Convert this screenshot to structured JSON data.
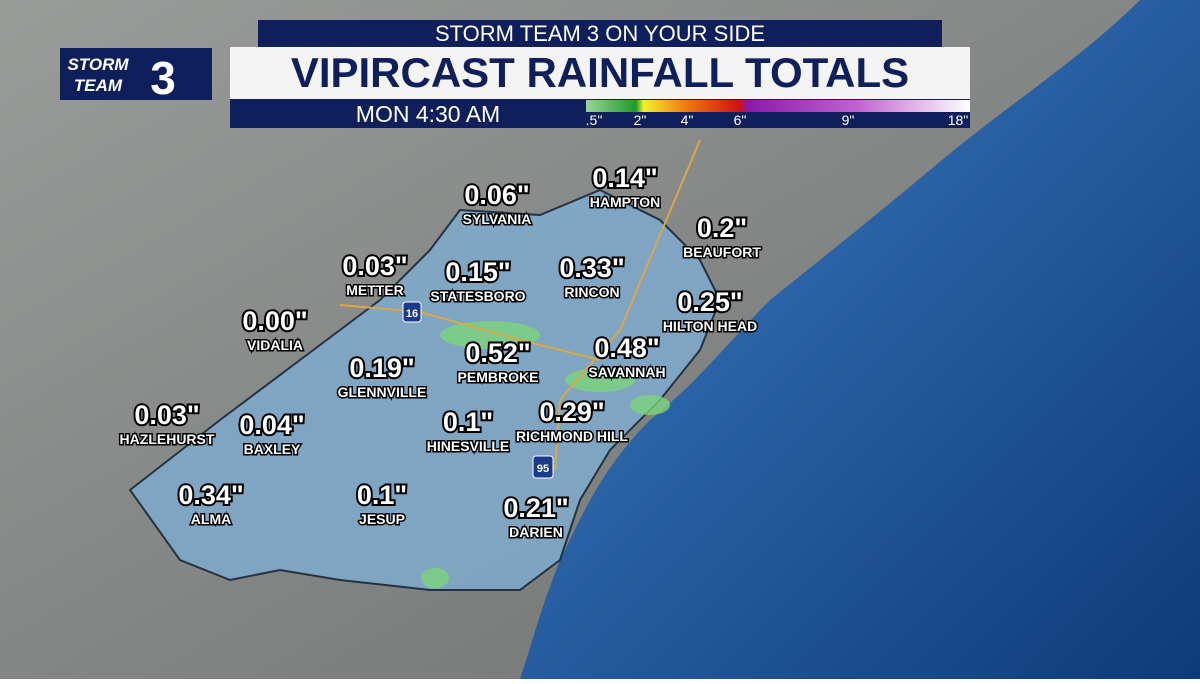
{
  "header": {
    "kicker": "STORM TEAM 3 ON YOUR SIDE",
    "title": "VIPIRCAST RAINFALL TOTALS",
    "time": "MON 4:30 AM"
  },
  "logo": {
    "line1": "STORM",
    "line2": "TEAM",
    "number": "3"
  },
  "legend": {
    "labels": [
      ".5\"",
      "2\"",
      "4\"",
      "6\"",
      "9\"",
      "18\""
    ]
  },
  "highways": [
    "16",
    "95"
  ],
  "locations": [
    {
      "value": "0.06\"",
      "name": "SYLVANIA"
    },
    {
      "value": "0.14\"",
      "name": "HAMPTON"
    },
    {
      "value": "0.2\"",
      "name": "BEAUFORT"
    },
    {
      "value": "0.03\"",
      "name": "METTER"
    },
    {
      "value": "0.15\"",
      "name": "STATESBORO"
    },
    {
      "value": "0.33\"",
      "name": "RINCON"
    },
    {
      "value": "0.25\"",
      "name": "HILTON HEAD"
    },
    {
      "value": "0.00\"",
      "name": "VIDALIA"
    },
    {
      "value": "0.19\"",
      "name": "GLENNVILLE"
    },
    {
      "value": "0.52\"",
      "name": "PEMBROKE"
    },
    {
      "value": "0.48\"",
      "name": "SAVANNAH"
    },
    {
      "value": "0.03\"",
      "name": "HAZLEHURST"
    },
    {
      "value": "0.04\"",
      "name": "BAXLEY"
    },
    {
      "value": "0.1\"",
      "name": "HINESVILLE"
    },
    {
      "value": "0.29\"",
      "name": "RICHMOND HILL"
    },
    {
      "value": "0.34\"",
      "name": "ALMA"
    },
    {
      "value": "0.1\"",
      "name": "JESUP"
    },
    {
      "value": "0.21\"",
      "name": "DARIEN"
    }
  ]
}
